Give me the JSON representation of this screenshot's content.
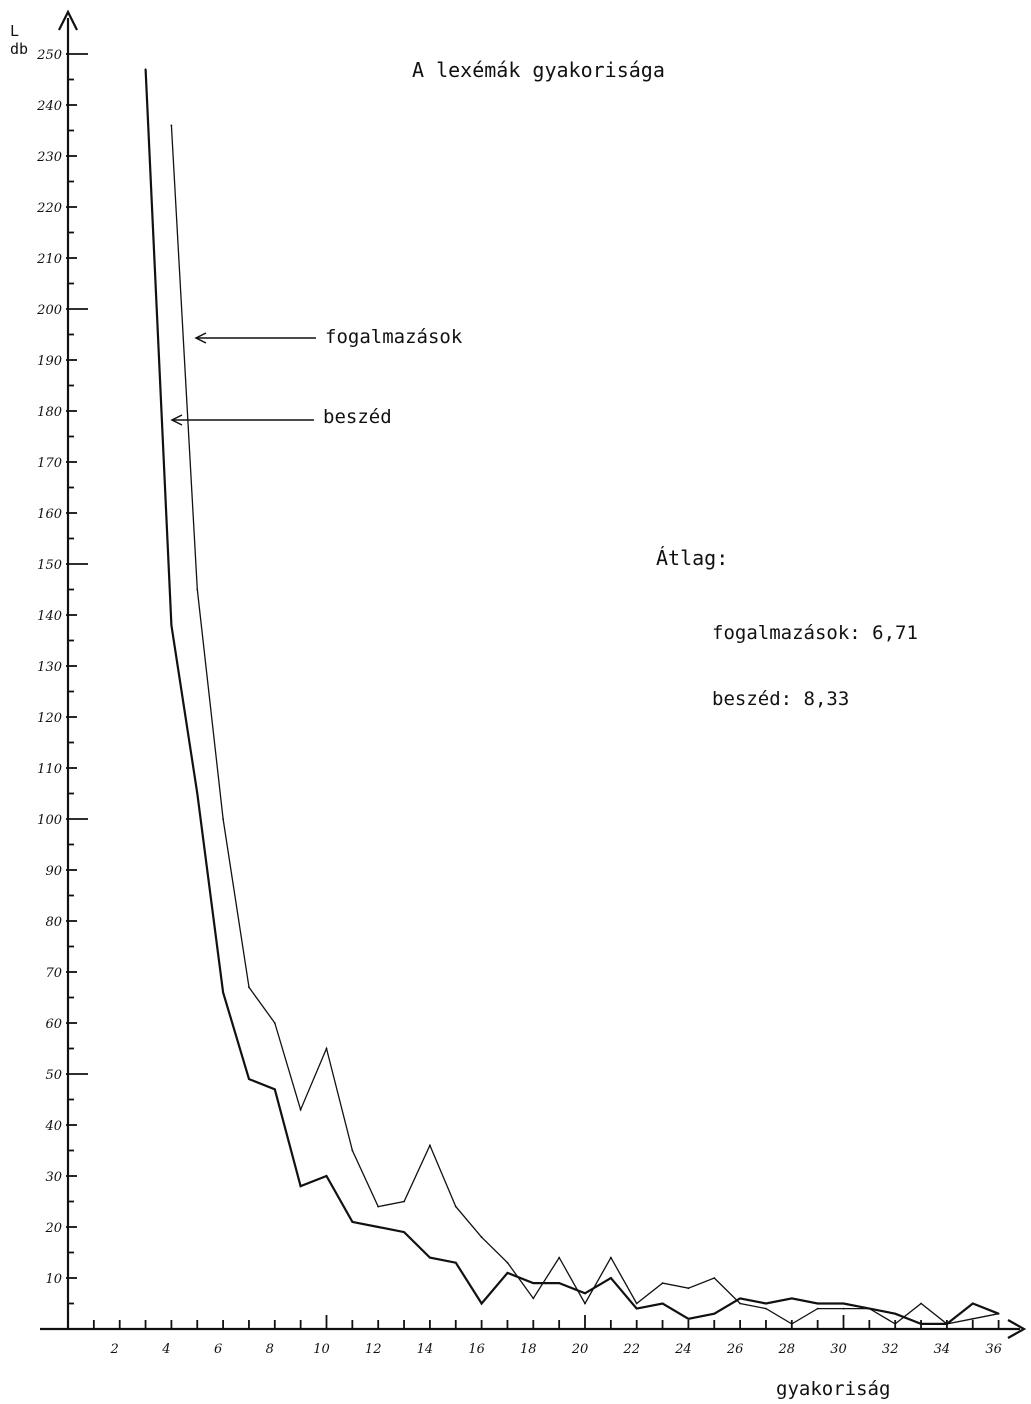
{
  "chart_data": {
    "type": "line",
    "title": "A lexémák gyakorisága",
    "ylabel_line1": "L",
    "ylabel_line2": "db",
    "xlabel": "gyakoriság",
    "ylim": [
      0,
      250
    ],
    "xlim": [
      0,
      36
    ],
    "y_ticks": [
      {
        "value": 250,
        "label": "250"
      },
      {
        "value": 240,
        "label": "240"
      },
      {
        "value": 230,
        "label": "230"
      },
      {
        "value": 220,
        "label": "220"
      },
      {
        "value": 210,
        "label": "210"
      },
      {
        "value": 200,
        "label": "200"
      },
      {
        "value": 190,
        "label": "190"
      },
      {
        "value": 180,
        "label": "180"
      },
      {
        "value": 170,
        "label": "170"
      },
      {
        "value": 160,
        "label": "160"
      },
      {
        "value": 150,
        "label": "150"
      },
      {
        "value": 140,
        "label": "140"
      },
      {
        "value": 130,
        "label": "130"
      },
      {
        "value": 120,
        "label": "120"
      },
      {
        "value": 110,
        "label": "110"
      },
      {
        "value": 100,
        "label": "100"
      },
      {
        "value": 90,
        "label": "90"
      },
      {
        "value": 80,
        "label": "80"
      },
      {
        "value": 70,
        "label": "70"
      },
      {
        "value": 60,
        "label": "60"
      },
      {
        "value": 50,
        "label": "50"
      },
      {
        "value": 40,
        "label": "40"
      },
      {
        "value": 30,
        "label": "30"
      },
      {
        "value": 20,
        "label": "20"
      },
      {
        "value": 10,
        "label": "10"
      }
    ],
    "x_ticks": [
      {
        "value": 2,
        "label": "2"
      },
      {
        "value": 4,
        "label": "4"
      },
      {
        "value": 6,
        "label": "6"
      },
      {
        "value": 8,
        "label": "8"
      },
      {
        "value": 10,
        "label": "10"
      },
      {
        "value": 12,
        "label": "12"
      },
      {
        "value": 14,
        "label": "14"
      },
      {
        "value": 16,
        "label": "16"
      },
      {
        "value": 18,
        "label": "18"
      },
      {
        "value": 20,
        "label": "20"
      },
      {
        "value": 22,
        "label": "22"
      },
      {
        "value": 24,
        "label": "24"
      },
      {
        "value": 26,
        "label": "26"
      },
      {
        "value": 28,
        "label": "28"
      },
      {
        "value": 30,
        "label": "30"
      },
      {
        "value": 32,
        "label": "32"
      },
      {
        "value": 34,
        "label": "34"
      },
      {
        "value": 36,
        "label": "36"
      }
    ],
    "series": [
      {
        "name": "beszéd",
        "x": [
          3,
          4,
          5,
          6,
          7,
          8,
          9,
          10,
          11,
          12,
          13,
          14,
          15,
          16,
          17,
          18,
          19,
          20,
          21,
          22,
          23,
          24,
          25,
          26,
          27,
          28,
          29,
          30,
          31,
          32,
          33,
          34,
          35,
          36
        ],
        "values": [
          247,
          138,
          105,
          66,
          49,
          47,
          28,
          30,
          21,
          20,
          19,
          14,
          13,
          5,
          11,
          9,
          9,
          7,
          10,
          4,
          5,
          2,
          3,
          6,
          5,
          6,
          5,
          5,
          4,
          3,
          1,
          1,
          5,
          3
        ]
      },
      {
        "name": "fogalmazások",
        "x": [
          4,
          5,
          6,
          7,
          8,
          9,
          10,
          11,
          12,
          13,
          14,
          15,
          16,
          17,
          18,
          19,
          20,
          21,
          22,
          23,
          24,
          25,
          26,
          27,
          28,
          29,
          30,
          31,
          32,
          33,
          34,
          35,
          36
        ],
        "values": [
          236,
          145,
          100,
          67,
          60,
          43,
          55,
          35,
          24,
          25,
          36,
          24,
          18,
          13,
          6,
          14,
          5,
          14,
          5,
          9,
          8,
          10,
          5,
          4,
          1,
          4,
          4,
          4,
          1,
          5,
          1,
          2,
          3
        ]
      }
    ],
    "legend": [
      {
        "label": "fogalmazások"
      },
      {
        "label": "beszéd"
      }
    ],
    "annotations": {
      "average_heading": "Átlag:",
      "average_items": [
        {
          "label": "fogalmazások: 6,71"
        },
        {
          "label": "beszéd: 8,33"
        }
      ]
    },
    "grid": false
  }
}
